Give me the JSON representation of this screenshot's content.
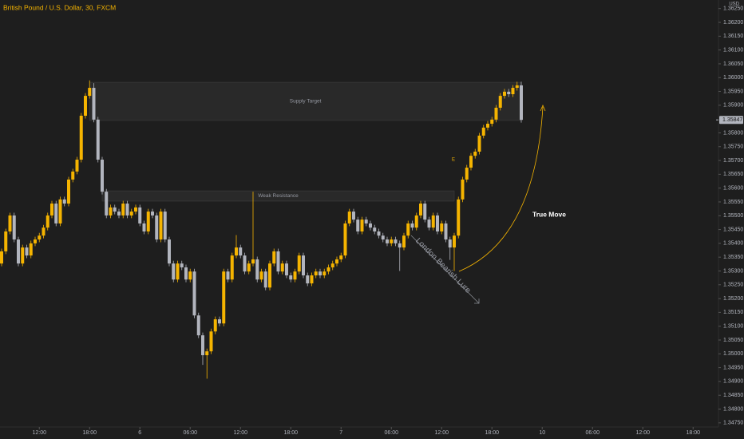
{
  "chart_data": {
    "type": "candlestick",
    "title": "British Pound / U.S. Dollar, 30, FXCM",
    "currency": "USD",
    "up_color": "#f5b400",
    "down_color": "#b2b5be",
    "open": [
      1.35327,
      1.35371,
      1.35443,
      1.35501,
      1.35414,
      1.35327,
      1.35385,
      1.35356,
      1.354,
      1.35414,
      1.35428,
      1.35457,
      1.35501,
      1.35544,
      1.35472,
      1.35559,
      1.35544,
      1.35631,
      1.3566,
      1.35703,
      1.35862,
      1.35934,
      1.35963,
      1.35848,
      1.35703,
      1.35587,
      1.35501,
      1.3553,
      1.35515,
      1.35501,
      1.35544,
      1.35501,
      1.35515,
      1.3553,
      1.35472,
      1.35443,
      1.35515,
      1.35501,
      1.35414,
      1.35515,
      1.35414,
      1.35327,
      1.35269,
      1.35327,
      1.35313,
      1.35269,
      1.35298,
      1.35139,
      1.35067,
      1.34995,
      1.35009,
      1.35081,
      1.35125,
      1.3511,
      1.35298,
      1.35269,
      1.35356,
      1.35385,
      1.35356,
      1.35298,
      1.35327,
      1.35342,
      1.35269,
      1.35298,
      1.3524,
      1.35327,
      1.35371,
      1.35298,
      1.35327,
      1.35284,
      1.35269,
      1.35298,
      1.35356,
      1.35284,
      1.35255,
      1.35284,
      1.35298,
      1.35284,
      1.35298,
      1.35313,
      1.35327,
      1.35342,
      1.35356,
      1.35472,
      1.35515,
      1.35486,
      1.35443,
      1.35486,
      1.35472,
      1.35457,
      1.35443,
      1.35428,
      1.35414,
      1.354,
      1.35414,
      1.354,
      1.35385,
      1.35428,
      1.35472,
      1.35457,
      1.35501,
      1.35544,
      1.35486,
      1.35457,
      1.35501,
      1.35443,
      1.35472,
      1.35414,
      1.35385,
      1.35428,
      1.35559,
      1.35631,
      1.35674,
      1.35717,
      1.35732,
      1.3579,
      1.35819,
      1.35833,
      1.35848,
      1.35891,
      1.35934,
      1.35949,
      1.3594,
      1.35963,
      1.35972
    ],
    "high": [
      1.35381,
      1.35453,
      1.35511,
      1.35511,
      1.35424,
      1.35395,
      1.35395,
      1.3541,
      1.35424,
      1.35438,
      1.35467,
      1.35511,
      1.35554,
      1.35554,
      1.35569,
      1.35569,
      1.35641,
      1.3567,
      1.35713,
      1.35872,
      1.35944,
      1.3599,
      1.3598,
      1.35858,
      1.35713,
      1.35597,
      1.3554,
      1.3554,
      1.35525,
      1.35554,
      1.35554,
      1.35525,
      1.3554,
      1.3554,
      1.35482,
      1.35525,
      1.35525,
      1.35511,
      1.35525,
      1.35525,
      1.35424,
      1.35337,
      1.35337,
      1.35337,
      1.35323,
      1.35308,
      1.35308,
      1.35149,
      1.35077,
      1.35019,
      1.35091,
      1.35135,
      1.35135,
      1.35308,
      1.35308,
      1.35366,
      1.3543,
      1.35395,
      1.35366,
      1.35337,
      1.35587,
      1.35352,
      1.35308,
      1.35308,
      1.35337,
      1.35381,
      1.35381,
      1.35337,
      1.35337,
      1.35294,
      1.35308,
      1.35366,
      1.35366,
      1.35294,
      1.35294,
      1.35308,
      1.35308,
      1.35308,
      1.35323,
      1.35337,
      1.35352,
      1.35366,
      1.35482,
      1.35525,
      1.35525,
      1.35496,
      1.35496,
      1.35496,
      1.35482,
      1.35467,
      1.35453,
      1.35438,
      1.35424,
      1.35424,
      1.35424,
      1.3541,
      1.35438,
      1.35482,
      1.35482,
      1.35511,
      1.35554,
      1.35554,
      1.35496,
      1.35511,
      1.35511,
      1.35482,
      1.35482,
      1.35424,
      1.35438,
      1.35569,
      1.35641,
      1.35684,
      1.35727,
      1.35742,
      1.358,
      1.35829,
      1.35843,
      1.35858,
      1.35901,
      1.35944,
      1.35959,
      1.35959,
      1.35973,
      1.35985,
      1.35985
    ],
    "low": [
      1.35317,
      1.35361,
      1.35433,
      1.35404,
      1.35317,
      1.35317,
      1.35346,
      1.35346,
      1.3539,
      1.35404,
      1.35418,
      1.35447,
      1.35491,
      1.35462,
      1.35462,
      1.35534,
      1.35534,
      1.35621,
      1.3565,
      1.35693,
      1.35852,
      1.35924,
      1.35838,
      1.35693,
      1.35577,
      1.35491,
      1.35491,
      1.35505,
      1.35491,
      1.35491,
      1.35491,
      1.35491,
      1.35505,
      1.35462,
      1.35433,
      1.35433,
      1.35491,
      1.35404,
      1.35404,
      1.35404,
      1.35317,
      1.35259,
      1.35259,
      1.35303,
      1.35259,
      1.35259,
      1.35129,
      1.35057,
      1.3496,
      1.3491,
      1.34999,
      1.35071,
      1.351,
      1.351,
      1.35259,
      1.35259,
      1.35346,
      1.35346,
      1.35288,
      1.35288,
      1.35317,
      1.35259,
      1.35259,
      1.3523,
      1.3523,
      1.35317,
      1.35288,
      1.35288,
      1.35274,
      1.35259,
      1.35259,
      1.35288,
      1.35274,
      1.35245,
      1.35245,
      1.35274,
      1.35274,
      1.35274,
      1.35288,
      1.35303,
      1.35317,
      1.35332,
      1.35346,
      1.35462,
      1.35476,
      1.35433,
      1.35433,
      1.35462,
      1.35447,
      1.35433,
      1.35418,
      1.35404,
      1.3539,
      1.3539,
      1.3539,
      1.353,
      1.35375,
      1.35418,
      1.35447,
      1.35447,
      1.35491,
      1.35476,
      1.35447,
      1.35447,
      1.35433,
      1.35433,
      1.35404,
      1.3534,
      1.353,
      1.35418,
      1.35549,
      1.35621,
      1.35664,
      1.35707,
      1.35722,
      1.3578,
      1.35809,
      1.35823,
      1.35838,
      1.35881,
      1.35924,
      1.3593,
      1.3593,
      1.35953,
      1.35837
    ],
    "close": [
      1.35371,
      1.35443,
      1.35501,
      1.35414,
      1.35327,
      1.35385,
      1.35356,
      1.354,
      1.35414,
      1.35428,
      1.35457,
      1.35501,
      1.35544,
      1.35472,
      1.35559,
      1.35544,
      1.35631,
      1.3566,
      1.35703,
      1.35862,
      1.35934,
      1.35963,
      1.35848,
      1.35703,
      1.35587,
      1.35501,
      1.3553,
      1.35515,
      1.35501,
      1.35544,
      1.35501,
      1.35515,
      1.3553,
      1.35472,
      1.35443,
      1.35515,
      1.35501,
      1.35414,
      1.35515,
      1.35414,
      1.35327,
      1.35269,
      1.35327,
      1.35313,
      1.35269,
      1.35298,
      1.35139,
      1.35067,
      1.34995,
      1.35009,
      1.35081,
      1.35125,
      1.3511,
      1.35298,
      1.35269,
      1.35356,
      1.35385,
      1.35356,
      1.35298,
      1.35327,
      1.35342,
      1.35269,
      1.35298,
      1.3524,
      1.35327,
      1.35371,
      1.35298,
      1.35327,
      1.35284,
      1.35269,
      1.35298,
      1.35356,
      1.35284,
      1.35255,
      1.35284,
      1.35298,
      1.35284,
      1.35298,
      1.35313,
      1.35327,
      1.35342,
      1.35356,
      1.35472,
      1.35515,
      1.35486,
      1.35443,
      1.35486,
      1.35472,
      1.35457,
      1.35443,
      1.35428,
      1.35414,
      1.354,
      1.35414,
      1.354,
      1.35385,
      1.35428,
      1.35472,
      1.35457,
      1.35501,
      1.35544,
      1.35486,
      1.35457,
      1.35501,
      1.35443,
      1.35472,
      1.35414,
      1.35385,
      1.35428,
      1.35559,
      1.35631,
      1.35674,
      1.35717,
      1.35732,
      1.3579,
      1.35819,
      1.35833,
      1.35848,
      1.35891,
      1.35934,
      1.35949,
      1.3594,
      1.35963,
      1.35972,
      1.35847
    ],
    "last_price": 1.35847,
    "xlim": [
      -0.38,
      171.05
    ],
    "xticks": [
      {
        "value": 9,
        "label": "12:00"
      },
      {
        "value": 21,
        "label": "18:00"
      },
      {
        "value": 33,
        "label": "6"
      },
      {
        "value": 45,
        "label": "06:00"
      },
      {
        "value": 57,
        "label": "12:00"
      },
      {
        "value": 69,
        "label": "18:00"
      },
      {
        "value": 81,
        "label": "7"
      },
      {
        "value": 93,
        "label": "06:00"
      },
      {
        "value": 105,
        "label": "12:00"
      },
      {
        "value": 117,
        "label": "18:00"
      },
      {
        "value": 129,
        "label": "10"
      },
      {
        "value": 141,
        "label": "06:00"
      },
      {
        "value": 153,
        "label": "12:00"
      },
      {
        "value": 165,
        "label": "18:00"
      }
    ],
    "ylim": [
      1.34735,
      1.36281
    ],
    "yticks": [
      {
        "value": 1.3625,
        "label": "1.36250"
      },
      {
        "value": 1.362,
        "label": "1.36200"
      },
      {
        "value": 1.3615,
        "label": "1.36150"
      },
      {
        "value": 1.361,
        "label": "1.36100"
      },
      {
        "value": 1.3605,
        "label": "1.36050"
      },
      {
        "value": 1.36,
        "label": "1.36000"
      },
      {
        "value": 1.3595,
        "label": "1.35950"
      },
      {
        "value": 1.359,
        "label": "1.35900"
      },
      {
        "value": 1.358,
        "label": "1.35800"
      },
      {
        "value": 1.3575,
        "label": "1.35750"
      },
      {
        "value": 1.357,
        "label": "1.35700"
      },
      {
        "value": 1.3565,
        "label": "1.35650"
      },
      {
        "value": 1.356,
        "label": "1.35600"
      },
      {
        "value": 1.3555,
        "label": "1.35550"
      },
      {
        "value": 1.355,
        "label": "1.35500"
      },
      {
        "value": 1.3545,
        "label": "1.35450"
      },
      {
        "value": 1.354,
        "label": "1.35400"
      },
      {
        "value": 1.3535,
        "label": "1.35350"
      },
      {
        "value": 1.353,
        "label": "1.35300"
      },
      {
        "value": 1.3525,
        "label": "1.35250"
      },
      {
        "value": 1.352,
        "label": "1.35200"
      },
      {
        "value": 1.3515,
        "label": "1.35150"
      },
      {
        "value": 1.351,
        "label": "1.35100"
      },
      {
        "value": 1.3505,
        "label": "1.35050"
      },
      {
        "value": 1.35,
        "label": "1.35000"
      },
      {
        "value": 1.3495,
        "label": "1.34950"
      },
      {
        "value": 1.349,
        "label": "1.34900"
      },
      {
        "value": 1.3485,
        "label": "1.34850"
      },
      {
        "value": 1.348,
        "label": "1.34800"
      },
      {
        "value": 1.3475,
        "label": "1.34750"
      }
    ],
    "grid": false,
    "zones": [
      {
        "label": "Supply Target",
        "x": [
          21,
          124
        ],
        "y": [
          1.35845,
          1.35983
        ]
      },
      {
        "label": "Weak Resistance",
        "x": [
          24,
          108
        ],
        "y": [
          1.35553,
          1.3559
        ]
      }
    ],
    "annotations": [
      "London Bearish Lure",
      "True Move",
      "E"
    ]
  }
}
